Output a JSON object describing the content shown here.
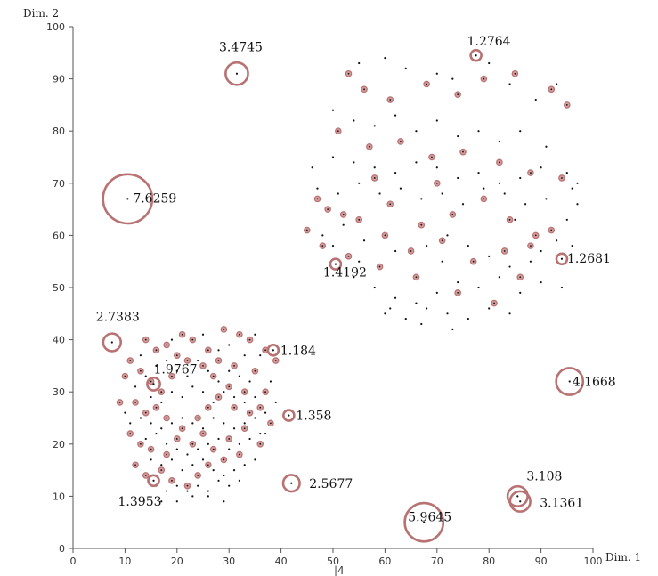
{
  "chart_data": {
    "type": "scatter",
    "title": "",
    "xlabel": "Dim. 1",
    "ylabel": "Dim. 2",
    "xlim": [
      0,
      100
    ],
    "ylim": [
      0,
      100
    ],
    "x_ticks": [
      0,
      10,
      20,
      30,
      40,
      50,
      60,
      70,
      80,
      90,
      100
    ],
    "y_ticks": [
      0,
      10,
      20,
      30,
      40,
      50,
      60,
      70,
      80,
      90,
      100
    ],
    "stray_label": "|4",
    "grid": false,
    "colors": {
      "point": "#111111",
      "circle_stroke": "#b87272",
      "circle_fill": "#b04a4a",
      "axis": "#555555"
    },
    "outlier_points": [
      {
        "x": 31.5,
        "y": 91.0,
        "score": "3.4745",
        "radius": 3.4745
      },
      {
        "x": 10.5,
        "y": 67.0,
        "score": "7.6259",
        "radius": 7.6259
      },
      {
        "x": 7.5,
        "y": 39.5,
        "score": "2.7383",
        "radius": 2.7383
      },
      {
        "x": 15.5,
        "y": 31.5,
        "score": "1.9767",
        "radius": 1.9767
      },
      {
        "x": 15.5,
        "y": 13.0,
        "score": "1.3953",
        "radius": 1.3953
      },
      {
        "x": 38.5,
        "y": 38.0,
        "score": "1.184",
        "radius": 1.184
      },
      {
        "x": 41.5,
        "y": 25.5,
        "score": "1.358",
        "radius": 1.358
      },
      {
        "x": 42.0,
        "y": 12.5,
        "score": "2.5677",
        "radius": 2.5677
      },
      {
        "x": 50.5,
        "y": 54.5,
        "score": "1.4192",
        "radius": 1.4192
      },
      {
        "x": 77.5,
        "y": 94.5,
        "score": "1.2764",
        "radius": 1.2764
      },
      {
        "x": 94.0,
        "y": 55.5,
        "score": "1.2681",
        "radius": 1.2681
      },
      {
        "x": 95.5,
        "y": 32.0,
        "score": "4.1668",
        "radius": 4.1668
      },
      {
        "x": 67.5,
        "y": 5.0,
        "score": "5.9645",
        "radius": 5.9645
      },
      {
        "x": 85.5,
        "y": 10.0,
        "score": "3.108",
        "radius": 3.108
      },
      {
        "x": 86.0,
        "y": 9.0,
        "score": "3.1361",
        "radius": 3.1361
      }
    ],
    "circled_points": [
      [
        16,
        38
      ],
      [
        18,
        39
      ],
      [
        21,
        41
      ],
      [
        23,
        40
      ],
      [
        26,
        38
      ],
      [
        29,
        42
      ],
      [
        32,
        41
      ],
      [
        34,
        40
      ],
      [
        37,
        38
      ],
      [
        39,
        36
      ],
      [
        13,
        34
      ],
      [
        15,
        32
      ],
      [
        17,
        30
      ],
      [
        19,
        33
      ],
      [
        22,
        36
      ],
      [
        25,
        35
      ],
      [
        27,
        33
      ],
      [
        30,
        31
      ],
      [
        33,
        30
      ],
      [
        35,
        34
      ],
      [
        12,
        28
      ],
      [
        14,
        26
      ],
      [
        16,
        27
      ],
      [
        18,
        25
      ],
      [
        21,
        23
      ],
      [
        24,
        25
      ],
      [
        26,
        27
      ],
      [
        28,
        29
      ],
      [
        31,
        27
      ],
      [
        34,
        26
      ],
      [
        11,
        22
      ],
      [
        13,
        20
      ],
      [
        15,
        19
      ],
      [
        18,
        18
      ],
      [
        20,
        21
      ],
      [
        23,
        20
      ],
      [
        25,
        22
      ],
      [
        27,
        19
      ],
      [
        30,
        21
      ],
      [
        33,
        23
      ],
      [
        12,
        16
      ],
      [
        14,
        14
      ],
      [
        17,
        15
      ],
      [
        19,
        13
      ],
      [
        22,
        12
      ],
      [
        24,
        14
      ],
      [
        26,
        16
      ],
      [
        29,
        17
      ],
      [
        32,
        18
      ],
      [
        36,
        20
      ],
      [
        9,
        28
      ],
      [
        10,
        33
      ],
      [
        11,
        36
      ],
      [
        37,
        30
      ],
      [
        38,
        24
      ],
      [
        36,
        27
      ],
      [
        14,
        40
      ],
      [
        20,
        37
      ],
      [
        28,
        36
      ],
      [
        31,
        35
      ],
      [
        53,
        91
      ],
      [
        56,
        88
      ],
      [
        61,
        86
      ],
      [
        68,
        89
      ],
      [
        74,
        87
      ],
      [
        79,
        90
      ],
      [
        85,
        91
      ],
      [
        92,
        88
      ],
      [
        95,
        85
      ],
      [
        51,
        80
      ],
      [
        57,
        77
      ],
      [
        63,
        78
      ],
      [
        69,
        75
      ],
      [
        75,
        76
      ],
      [
        82,
        74
      ],
      [
        88,
        72
      ],
      [
        94,
        71
      ],
      [
        49,
        65
      ],
      [
        55,
        63
      ],
      [
        61,
        66
      ],
      [
        67,
        62
      ],
      [
        73,
        64
      ],
      [
        79,
        67
      ],
      [
        84,
        63
      ],
      [
        89,
        60
      ],
      [
        48,
        58
      ],
      [
        53,
        56
      ],
      [
        59,
        54
      ],
      [
        65,
        57
      ],
      [
        71,
        59
      ],
      [
        77,
        55
      ],
      [
        83,
        57
      ],
      [
        88,
        58
      ],
      [
        92,
        61
      ],
      [
        45,
        61
      ],
      [
        52,
        64
      ],
      [
        60,
        60
      ],
      [
        66,
        52
      ],
      [
        74,
        49
      ],
      [
        81,
        47
      ],
      [
        86,
        52
      ],
      [
        47,
        67
      ],
      [
        58,
        71
      ],
      [
        70,
        70
      ]
    ],
    "plain_points": [
      [
        16,
        35
      ],
      [
        18,
        36
      ],
      [
        20,
        34
      ],
      [
        22,
        33
      ],
      [
        24,
        36
      ],
      [
        26,
        34
      ],
      [
        28,
        32
      ],
      [
        30,
        34
      ],
      [
        32,
        33
      ],
      [
        34,
        32
      ],
      [
        15,
        29
      ],
      [
        17,
        28
      ],
      [
        19,
        30
      ],
      [
        21,
        29
      ],
      [
        23,
        31
      ],
      [
        25,
        30
      ],
      [
        27,
        28
      ],
      [
        29,
        30
      ],
      [
        31,
        29
      ],
      [
        33,
        28
      ],
      [
        35,
        29
      ],
      [
        13,
        25
      ],
      [
        15,
        24
      ],
      [
        17,
        23
      ],
      [
        19,
        24
      ],
      [
        21,
        25
      ],
      [
        23,
        24
      ],
      [
        25,
        23
      ],
      [
        27,
        25
      ],
      [
        29,
        24
      ],
      [
        31,
        23
      ],
      [
        33,
        24
      ],
      [
        35,
        25
      ],
      [
        37,
        26
      ],
      [
        14,
        21
      ],
      [
        16,
        22
      ],
      [
        18,
        20
      ],
      [
        20,
        19
      ],
      [
        22,
        18
      ],
      [
        24,
        19
      ],
      [
        26,
        20
      ],
      [
        28,
        21
      ],
      [
        30,
        19
      ],
      [
        32,
        20
      ],
      [
        34,
        21
      ],
      [
        36,
        22
      ],
      [
        15,
        17
      ],
      [
        17,
        16
      ],
      [
        19,
        17
      ],
      [
        21,
        15
      ],
      [
        23,
        16
      ],
      [
        25,
        17
      ],
      [
        27,
        15
      ],
      [
        29,
        14
      ],
      [
        31,
        15
      ],
      [
        33,
        16
      ],
      [
        35,
        17
      ],
      [
        16,
        12
      ],
      [
        18,
        11
      ],
      [
        20,
        12
      ],
      [
        22,
        11
      ],
      [
        24,
        12
      ],
      [
        26,
        11
      ],
      [
        28,
        13
      ],
      [
        30,
        12
      ],
      [
        32,
        13
      ],
      [
        17,
        9
      ],
      [
        20,
        9
      ],
      [
        23,
        10
      ],
      [
        26,
        10
      ],
      [
        29,
        9
      ],
      [
        19,
        40
      ],
      [
        25,
        41
      ],
      [
        30,
        39
      ],
      [
        35,
        41
      ],
      [
        36,
        37
      ],
      [
        13,
        37
      ],
      [
        12,
        31
      ],
      [
        10,
        26
      ],
      [
        11,
        24
      ],
      [
        38,
        32
      ],
      [
        37,
        22
      ],
      [
        39,
        28
      ],
      [
        14,
        33
      ],
      [
        28,
        38
      ],
      [
        33,
        37
      ],
      [
        55,
        93
      ],
      [
        60,
        94
      ],
      [
        64,
        92
      ],
      [
        70,
        91
      ],
      [
        73,
        90
      ],
      [
        80,
        93
      ],
      [
        84,
        89
      ],
      [
        89,
        86
      ],
      [
        93,
        89
      ],
      [
        50,
        84
      ],
      [
        54,
        82
      ],
      [
        58,
        81
      ],
      [
        62,
        83
      ],
      [
        66,
        80
      ],
      [
        70,
        82
      ],
      [
        74,
        79
      ],
      [
        78,
        80
      ],
      [
        82,
        78
      ],
      [
        86,
        80
      ],
      [
        91,
        77
      ],
      [
        46,
        73
      ],
      [
        50,
        75
      ],
      [
        54,
        74
      ],
      [
        58,
        73
      ],
      [
        62,
        72
      ],
      [
        66,
        74
      ],
      [
        70,
        73
      ],
      [
        74,
        71
      ],
      [
        78,
        72
      ],
      [
        82,
        70
      ],
      [
        86,
        71
      ],
      [
        90,
        73
      ],
      [
        95,
        72
      ],
      [
        97,
        70
      ],
      [
        47,
        69
      ],
      [
        51,
        68
      ],
      [
        55,
        70
      ],
      [
        59,
        68
      ],
      [
        63,
        69
      ],
      [
        67,
        67
      ],
      [
        71,
        68
      ],
      [
        75,
        66
      ],
      [
        79,
        69
      ],
      [
        83,
        68
      ],
      [
        87,
        66
      ],
      [
        91,
        67
      ],
      [
        96,
        69
      ],
      [
        48,
        60
      ],
      [
        50,
        58
      ],
      [
        52,
        62
      ],
      [
        56,
        59
      ],
      [
        62,
        57
      ],
      [
        68,
        58
      ],
      [
        72,
        60
      ],
      [
        76,
        58
      ],
      [
        80,
        56
      ],
      [
        84,
        54
      ],
      [
        88,
        55
      ],
      [
        90,
        57
      ],
      [
        54,
        52
      ],
      [
        58,
        50
      ],
      [
        62,
        48
      ],
      [
        66,
        47
      ],
      [
        70,
        49
      ],
      [
        74,
        51
      ],
      [
        78,
        50
      ],
      [
        82,
        52
      ],
      [
        86,
        49
      ],
      [
        90,
        51
      ],
      [
        94,
        50
      ],
      [
        60,
        45
      ],
      [
        64,
        44
      ],
      [
        68,
        46
      ],
      [
        72,
        45
      ],
      [
        76,
        44
      ],
      [
        80,
        46
      ],
      [
        84,
        45
      ],
      [
        95,
        63
      ],
      [
        96,
        58
      ],
      [
        97,
        66
      ],
      [
        61,
        46
      ],
      [
        67,
        43
      ],
      [
        73,
        42
      ],
      [
        55,
        55
      ],
      [
        71,
        55
      ],
      [
        85,
        63
      ],
      [
        93,
        59
      ]
    ]
  }
}
